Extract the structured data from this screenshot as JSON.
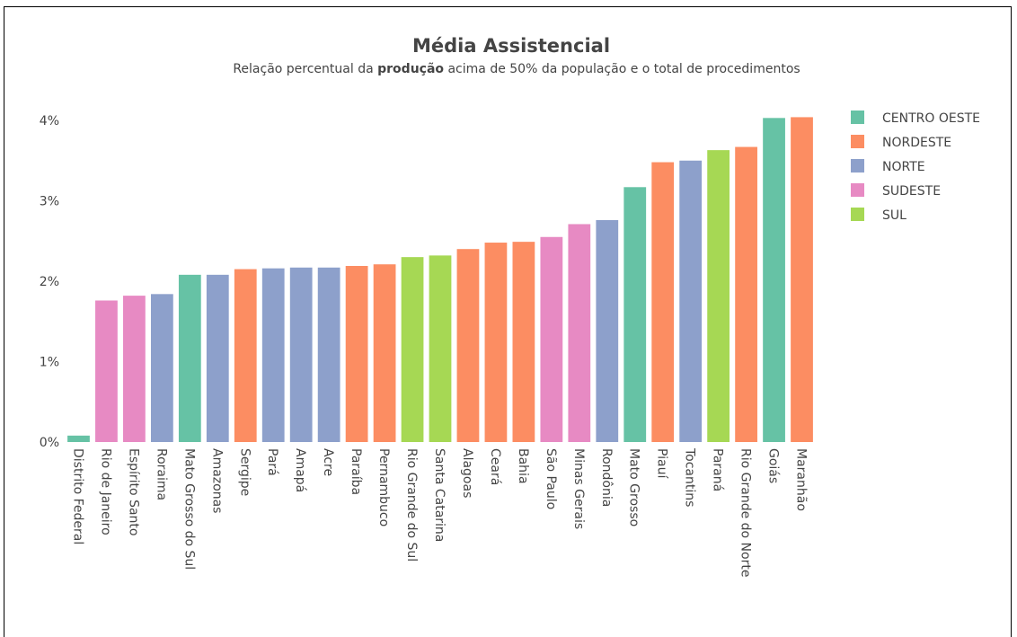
{
  "chart_data": {
    "type": "bar",
    "title": "Média Assistencial",
    "subtitle": {
      "before": "Relação percentual da ",
      "bold": "produção",
      "after": " acima de 50% da população e o total de procedimentos"
    },
    "xlabel": "",
    "ylabel": "",
    "ylim": [
      0,
      4.5
    ],
    "yticks": [
      0,
      1,
      2,
      3,
      4
    ],
    "ytick_labels": [
      "0%",
      "1%",
      "2%",
      "3%",
      "4%"
    ],
    "grid": false,
    "legend_position": "right",
    "legend": [
      {
        "name": "CENTRO OESTE",
        "color": "#66c2a5"
      },
      {
        "name": "NORDESTE",
        "color": "#fc8d62"
      },
      {
        "name": "NORTE",
        "color": "#8da0cb"
      },
      {
        "name": "SUDESTE",
        "color": "#e78ac3"
      },
      {
        "name": "SUL",
        "color": "#a6d854"
      }
    ],
    "bars": [
      {
        "category": "Distrito Federal",
        "value": 0.08,
        "region": "CENTRO OESTE"
      },
      {
        "category": "Rio de Janeiro",
        "value": 1.76,
        "region": "SUDESTE"
      },
      {
        "category": "Espírito Santo",
        "value": 1.82,
        "region": "SUDESTE"
      },
      {
        "category": "Roraima",
        "value": 1.84,
        "region": "NORTE"
      },
      {
        "category": "Mato Grosso do Sul",
        "value": 2.08,
        "region": "CENTRO OESTE"
      },
      {
        "category": "Amazonas",
        "value": 2.08,
        "region": "NORTE"
      },
      {
        "category": "Sergipe",
        "value": 2.15,
        "region": "NORDESTE"
      },
      {
        "category": "Pará",
        "value": 2.16,
        "region": "NORTE"
      },
      {
        "category": "Amapá",
        "value": 2.17,
        "region": "NORTE"
      },
      {
        "category": "Acre",
        "value": 2.17,
        "region": "NORTE"
      },
      {
        "category": "Paraíba",
        "value": 2.19,
        "region": "NORDESTE"
      },
      {
        "category": "Pernambuco",
        "value": 2.21,
        "region": "NORDESTE"
      },
      {
        "category": "Rio Grande do Sul",
        "value": 2.3,
        "region": "SUL"
      },
      {
        "category": "Santa Catarina",
        "value": 2.32,
        "region": "SUL"
      },
      {
        "category": "Alagoas",
        "value": 2.4,
        "region": "NORDESTE"
      },
      {
        "category": "Ceará",
        "value": 2.48,
        "region": "NORDESTE"
      },
      {
        "category": "Bahia",
        "value": 2.49,
        "region": "NORDESTE"
      },
      {
        "category": "São Paulo",
        "value": 2.55,
        "region": "SUDESTE"
      },
      {
        "category": "Minas Gerais",
        "value": 2.71,
        "region": "SUDESTE"
      },
      {
        "category": "Rondônia",
        "value": 2.76,
        "region": "NORTE"
      },
      {
        "category": "Mato Grosso",
        "value": 3.17,
        "region": "CENTRO OESTE"
      },
      {
        "category": "Piauí",
        "value": 3.48,
        "region": "NORDESTE"
      },
      {
        "category": "Tocantins",
        "value": 3.5,
        "region": "NORTE"
      },
      {
        "category": "Paraná",
        "value": 3.63,
        "region": "SUL"
      },
      {
        "category": "Rio Grande do Norte",
        "value": 3.67,
        "region": "NORDESTE"
      },
      {
        "category": "Goiás",
        "value": 4.03,
        "region": "CENTRO OESTE"
      },
      {
        "category": "Maranhão",
        "value": 4.04,
        "region": "NORDESTE"
      }
    ]
  }
}
